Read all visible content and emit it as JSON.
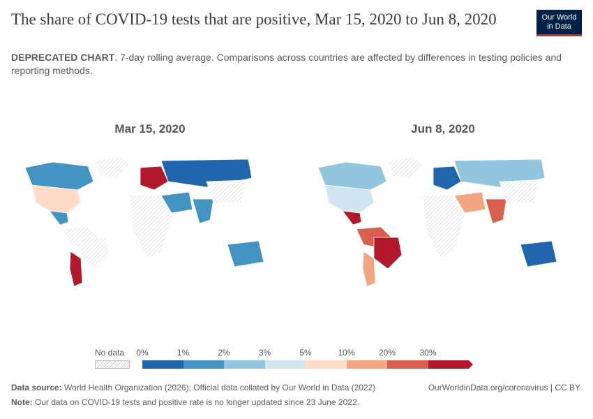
{
  "title": "The share of COVID-19 tests that are positive, Mar 15, 2020 to Jun 8, 2020",
  "logo": {
    "line1": "Our World",
    "line2": "in Data"
  },
  "subtitle": {
    "bold": "DEPRECATED CHART",
    "rest": ". 7-day rolling average. Comparisons across countries are affected by differences in testing policies and reporting methods."
  },
  "maps": {
    "left_title": "Mar 15, 2020",
    "right_title": "Jun 8, 2020"
  },
  "legend": {
    "no_data_label": "No data",
    "bins": [
      {
        "from": "0%",
        "to": "1%",
        "color": "#2166ac"
      },
      {
        "from": "1%",
        "to": "2%",
        "color": "#4393c3"
      },
      {
        "from": "2%",
        "to": "3%",
        "color": "#92c5de"
      },
      {
        "from": "3%",
        "to": "5%",
        "color": "#d1e5f0"
      },
      {
        "from": "5%",
        "to": "10%",
        "color": "#fddbc7"
      },
      {
        "from": "10%",
        "to": "20%",
        "color": "#f4a582"
      },
      {
        "from": "20%",
        "to": "30%",
        "color": "#d6604d"
      },
      {
        "from": "30%",
        "to": "",
        "color": "#b2182b"
      }
    ],
    "tick_labels": [
      "0%",
      "1%",
      "2%",
      "3%",
      "5%",
      "10%",
      "20%",
      "30%"
    ]
  },
  "footer": {
    "source_label": "Data source:",
    "source_text": " World Health Organization (2026); Official data collated by Our World in Data (2022)",
    "url": "OurWorldinData.org/coronavirus | CC BY",
    "note_label": "Note:",
    "note_text": " Our data on COVID-19 tests and positive rate is no longer updated since 23 June 2022."
  },
  "regions": {
    "mar15": {
      "north_america_usa": "#fddbc7",
      "canada": "#4393c3",
      "mexico": "#4393c3",
      "south_america_north": "#ffffff",
      "argentina": "#b2182b",
      "brazil": "#ffffff",
      "europe": "#b2182b",
      "russia": "#2166ac",
      "africa": "#ffffff",
      "middle_east": "#4393c3",
      "india": "#4393c3",
      "china": "#ffffff",
      "australia": "#4393c3",
      "greenland": "#ffffff"
    },
    "jun8": {
      "north_america_usa": "#d1e5f0",
      "canada": "#92c5de",
      "mexico": "#b2182b",
      "south_america_north": "#d6604d",
      "argentina": "#f4a582",
      "brazil": "#b2182b",
      "europe": "#2166ac",
      "russia": "#92c5de",
      "africa": "#ffffff",
      "middle_east": "#f4a582",
      "india": "#d6604d",
      "china": "#ffffff",
      "australia": "#2166ac",
      "greenland": "#ffffff"
    }
  }
}
